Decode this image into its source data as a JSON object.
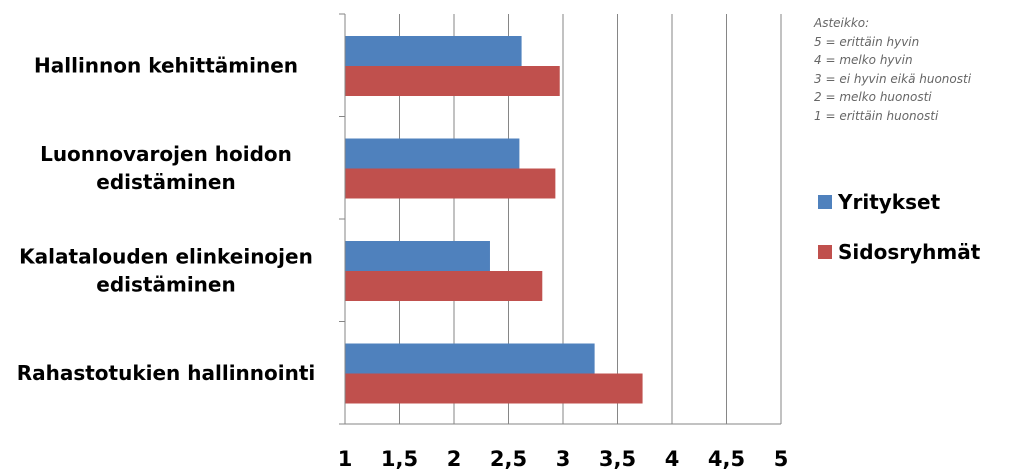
{
  "chart_data": {
    "type": "bar",
    "orientation": "horizontal",
    "categories": [
      [
        "Hallinnon kehittäminen"
      ],
      [
        "Luonnovarojen hoidon",
        "edistäminen"
      ],
      [
        "Kalatalouden elinkeinojen",
        "edistäminen"
      ],
      [
        "Rahastotukien hallinnointi"
      ]
    ],
    "series": [
      {
        "name": "Yritykset",
        "color": "#4f81bd",
        "values": [
          2.62,
          2.6,
          2.33,
          3.29
        ]
      },
      {
        "name": "Sidosryhmät",
        "color": "#c0504d",
        "values": [
          2.97,
          2.93,
          2.81,
          3.73
        ]
      }
    ],
    "xlim": [
      1,
      5
    ],
    "xticks": [
      "1",
      "1,5",
      "2",
      "2,5",
      "3",
      "3,5",
      "4",
      "4,5",
      "5"
    ],
    "grid": "vertical",
    "legend_position": "right",
    "title": "",
    "xlabel": "",
    "ylabel": ""
  },
  "scale_note": [
    "Asteikko:",
    "5 = erittäin hyvin",
    "4 = melko hyvin",
    "3 = ei hyvin eikä huonosti",
    "2 = melko huonosti",
    "1 = erittäin huonosti"
  ]
}
